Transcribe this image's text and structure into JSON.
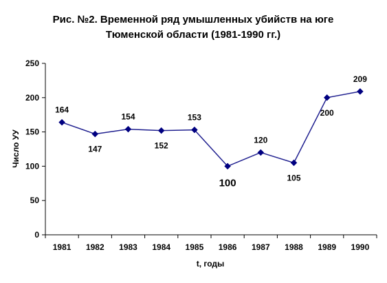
{
  "chart_data": {
    "type": "line",
    "title": "Рис. №2. Временной ряд умышленных убийств на юге",
    "subtitle": "Тюменской области (1981-1990 гг.)",
    "xlabel": "t, годы",
    "ylabel": "Число УУ",
    "x": [
      "1981",
      "1982",
      "1983",
      "1984",
      "1985",
      "1986",
      "1987",
      "1988",
      "1989",
      "1990"
    ],
    "values": [
      164,
      147,
      154,
      152,
      153,
      100,
      120,
      105,
      200,
      209
    ],
    "ylim": [
      0,
      250
    ],
    "yticks": [
      "0",
      "50",
      "100",
      "150",
      "200",
      "250"
    ],
    "grid": false,
    "colors": {
      "line": "#1f1f8f",
      "marker": "#000080",
      "highlight_label": "#ff0000",
      "label": "#000000"
    },
    "highlight_index": 5
  }
}
